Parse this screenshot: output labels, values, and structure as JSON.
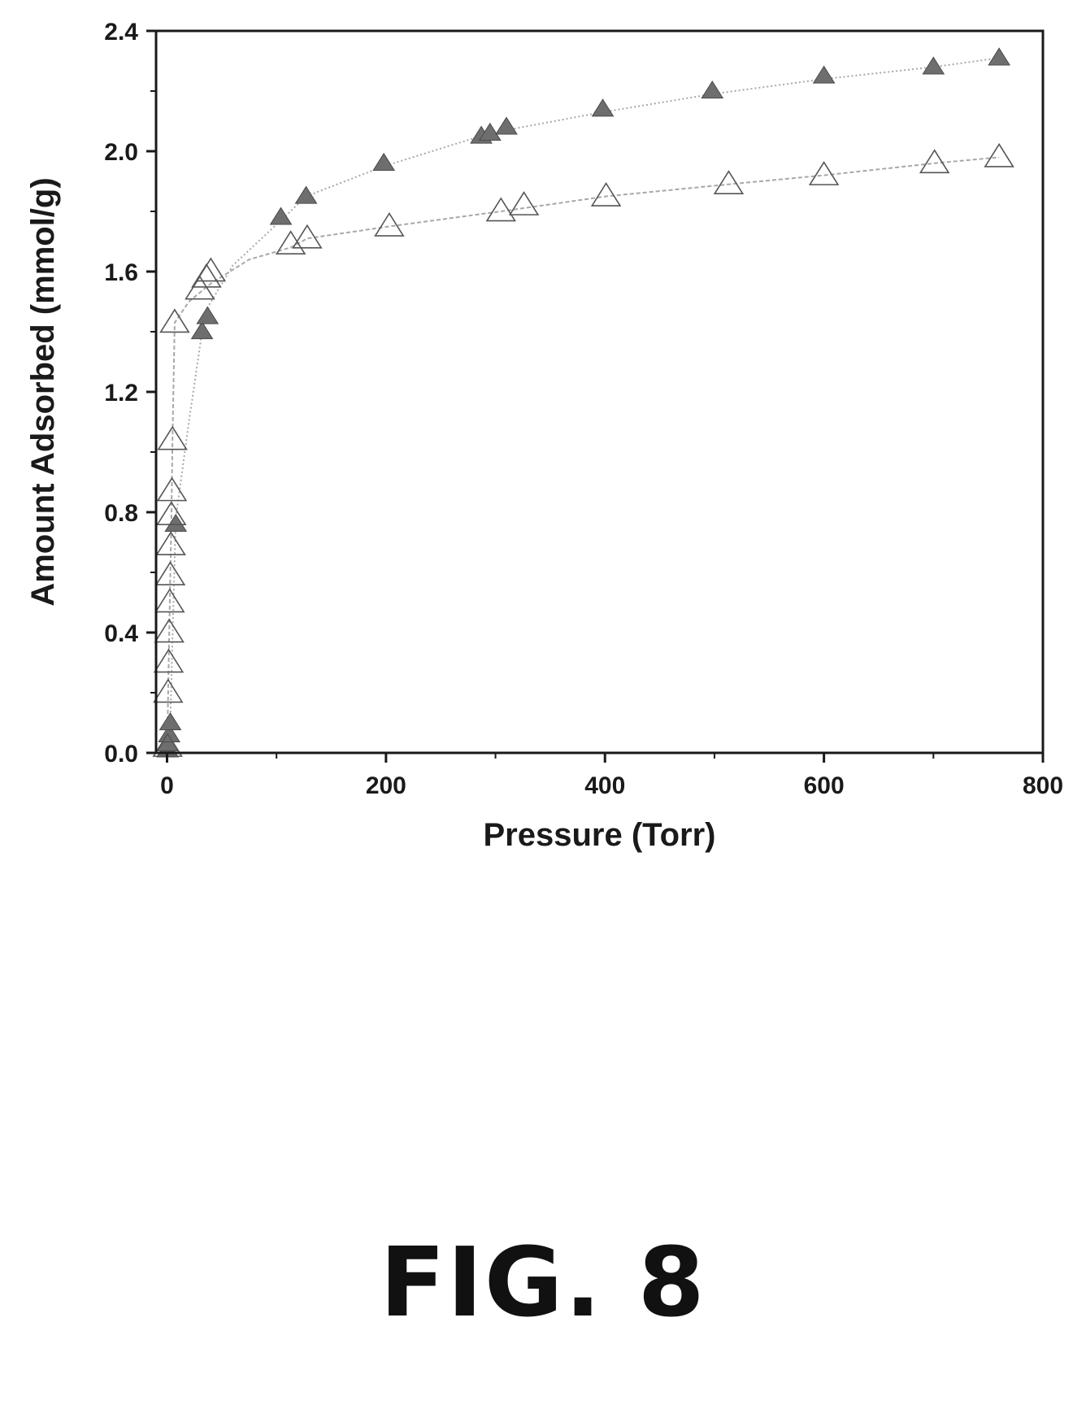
{
  "figure": {
    "caption": "FIG. 8"
  },
  "colors": {
    "axis": "#1a1a1a",
    "filled_marker": "#6e6e6e",
    "open_marker_stroke": "#555555",
    "fit_line": "#a8a8a8"
  },
  "chart_data": {
    "type": "scatter",
    "title": "",
    "xlabel": "Pressure (Torr)",
    "ylabel": "Amount Adsorbed (mmol/g)",
    "xlim": [
      -10,
      800
    ],
    "ylim": [
      0,
      2.4
    ],
    "xticks": [
      0,
      200,
      400,
      600,
      800
    ],
    "yticks": [
      0.0,
      0.4,
      0.8,
      1.2,
      1.6,
      2.0,
      2.4
    ],
    "xtick_labels": [
      "0",
      "200",
      "400",
      "600",
      "800"
    ],
    "ytick_labels": [
      "0.0",
      "0.4",
      "0.8",
      "1.2",
      "1.6",
      "2.0",
      "2.4"
    ],
    "grid": false,
    "legend": "none",
    "series": [
      {
        "marker": "filled-triangle",
        "x": [
          0.5,
          1,
          2,
          3,
          8,
          32,
          37,
          104,
          127,
          198,
          287,
          295,
          310,
          398,
          498,
          600,
          700,
          760
        ],
        "y": [
          0.01,
          0.03,
          0.06,
          0.1,
          0.76,
          1.4,
          1.45,
          1.78,
          1.85,
          1.96,
          2.05,
          2.06,
          2.08,
          2.14,
          2.2,
          2.25,
          2.28,
          2.31
        ],
        "fit_line": {
          "x": [
            0,
            3,
            8,
            20,
            32,
            37,
            60,
            104,
            127,
            198,
            295,
            398,
            498,
            600,
            700,
            760
          ],
          "y": [
            0.0,
            0.1,
            0.78,
            1.1,
            1.4,
            1.48,
            1.62,
            1.77,
            1.85,
            1.95,
            2.06,
            2.13,
            2.19,
            2.24,
            2.28,
            2.31
          ]
        }
      },
      {
        "marker": "open-triangle",
        "x": [
          0.5,
          1,
          1.5,
          2,
          2.5,
          3,
          3.5,
          4,
          4.5,
          5,
          7,
          30,
          36,
          40,
          113,
          128,
          203,
          305,
          326,
          401,
          513,
          600,
          701,
          760
        ],
        "y": [
          0.02,
          0.2,
          0.3,
          0.4,
          0.5,
          0.59,
          0.69,
          0.79,
          0.87,
          1.04,
          1.43,
          1.54,
          1.58,
          1.6,
          1.69,
          1.71,
          1.75,
          1.8,
          1.82,
          1.85,
          1.89,
          1.92,
          1.96,
          1.98
        ],
        "fit_line": {
          "x": [
            0,
            2,
            4,
            5,
            7,
            20,
            40,
            75,
            113,
            128,
            203,
            305,
            401,
            513,
            600,
            701,
            760
          ],
          "y": [
            0.0,
            0.4,
            0.79,
            1.04,
            1.43,
            1.5,
            1.56,
            1.64,
            1.68,
            1.71,
            1.75,
            1.8,
            1.85,
            1.89,
            1.92,
            1.96,
            1.98
          ]
        }
      }
    ]
  }
}
